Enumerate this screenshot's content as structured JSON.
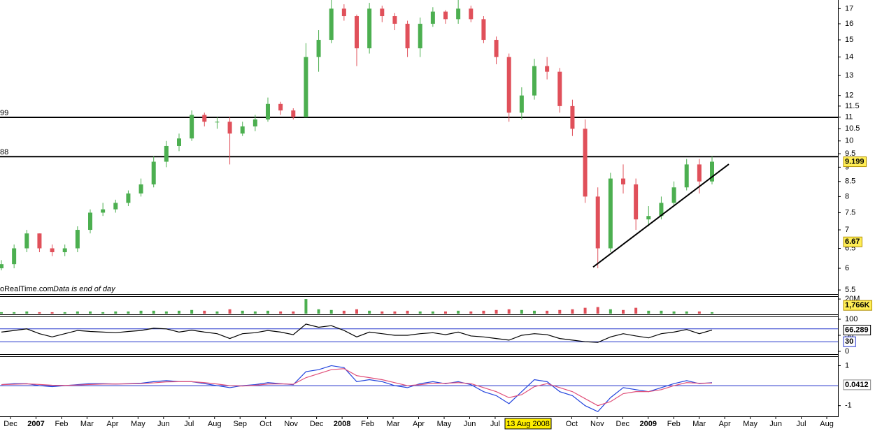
{
  "chart_data": [
    {
      "type": "candlestick",
      "open": [
        6.0,
        6.1,
        6.5,
        6.9,
        6.5,
        6.4,
        6.5,
        7.0,
        7.5,
        7.6,
        7.8,
        8.1,
        8.4,
        9.2,
        9.8,
        10.1,
        11.1,
        10.8,
        10.8,
        10.3,
        10.6,
        10.9,
        11.6,
        11.3,
        11.0,
        14.0,
        15.0,
        17.0,
        16.5,
        14.5,
        17.0,
        16.5,
        16.0,
        14.5,
        16.0,
        16.8,
        16.3,
        17.0,
        16.3,
        15.0,
        14.0,
        11.2,
        12.0,
        13.5,
        13.2,
        11.5,
        10.5,
        8.0,
        6.5,
        8.6,
        8.4,
        7.3,
        7.4,
        7.8,
        8.3,
        9.1,
        8.5
      ],
      "high": [
        6.2,
        6.6,
        7.0,
        6.9,
        6.6,
        6.6,
        7.1,
        7.6,
        7.8,
        7.9,
        8.2,
        8.6,
        9.4,
        10.0,
        10.3,
        11.3,
        11.2,
        11.0,
        11.0,
        10.8,
        11.1,
        11.9,
        11.7,
        11.4,
        14.8,
        15.6,
        17.6,
        17.3,
        16.6,
        17.4,
        17.2,
        16.7,
        16.2,
        16.4,
        17.1,
        16.9,
        17.6,
        17.2,
        16.5,
        15.2,
        14.2,
        12.4,
        13.9,
        14.0,
        13.4,
        11.8,
        10.9,
        8.3,
        8.8,
        9.1,
        8.6,
        7.7,
        8.0,
        8.5,
        9.3,
        9.3,
        9.4
      ],
      "low": [
        5.95,
        6.0,
        6.4,
        6.4,
        6.3,
        6.3,
        6.4,
        6.9,
        7.4,
        7.5,
        7.7,
        8.0,
        8.3,
        9.0,
        9.6,
        10.0,
        10.6,
        10.5,
        9.1,
        10.2,
        10.4,
        10.8,
        11.1,
        10.9,
        11.0,
        13.2,
        14.8,
        16.2,
        13.5,
        14.2,
        16.1,
        15.6,
        14.0,
        14.0,
        15.8,
        16.0,
        16.0,
        16.1,
        14.8,
        13.6,
        10.8,
        10.9,
        11.8,
        12.8,
        11.2,
        10.2,
        7.8,
        6.0,
        6.4,
        8.1,
        7.0,
        7.1,
        7.3,
        7.7,
        8.2,
        8.1,
        8.4
      ],
      "close": [
        6.1,
        6.5,
        6.9,
        6.5,
        6.4,
        6.5,
        7.0,
        7.5,
        7.6,
        7.8,
        8.1,
        8.4,
        9.2,
        9.8,
        10.1,
        11.1,
        10.8,
        10.8,
        10.3,
        10.6,
        10.9,
        11.6,
        11.3,
        11.0,
        14.0,
        15.0,
        17.0,
        16.5,
        14.5,
        17.0,
        16.5,
        16.0,
        14.5,
        16.0,
        16.8,
        16.3,
        17.0,
        16.3,
        15.0,
        14.0,
        11.2,
        12.0,
        13.5,
        13.2,
        11.5,
        10.5,
        8.0,
        6.5,
        8.6,
        8.4,
        7.3,
        7.4,
        7.8,
        8.3,
        9.1,
        8.5,
        9.2
      ],
      "up_color": "#4caf50",
      "down_color": "#e0505a",
      "log_scale": true,
      "ylim": [
        5.41,
        17.6
      ],
      "yticks": [
        5.5,
        6,
        6.5,
        7,
        7.5,
        8,
        8.5,
        9,
        9.5,
        10,
        10.5,
        11,
        11.5,
        12,
        13,
        14,
        15,
        16,
        17
      ],
      "levels": [
        {
          "value": 10.99,
          "label": "99"
        },
        {
          "value": 9.388,
          "label": "88"
        }
      ],
      "trendline": {
        "start": 6.03,
        "end": 9.11
      },
      "readouts": [
        9.199,
        6.67
      ],
      "source": "oRealTime.com",
      "note": "Data is end of day"
    },
    {
      "type": "bar",
      "values": [
        2,
        2,
        3,
        2,
        2,
        2,
        3,
        3,
        2,
        3,
        3,
        4,
        4,
        3,
        4,
        5,
        4,
        3,
        6,
        4,
        3,
        4,
        3,
        3,
        20,
        6,
        5,
        4,
        6,
        4,
        3,
        3,
        4,
        3,
        3,
        3,
        4,
        3,
        4,
        5,
        6,
        5,
        4,
        4,
        5,
        6,
        8,
        9,
        6,
        5,
        8,
        4,
        4,
        3,
        3,
        3,
        2
      ],
      "ylim": [
        0,
        22
      ],
      "yticks": [
        {
          "value": 20,
          "label": "20M"
        }
      ],
      "readout": {
        "value": 1.766,
        "label": "1,766K"
      }
    },
    {
      "type": "line",
      "color": "#000000",
      "values": [
        60,
        65,
        70,
        55,
        45,
        55,
        65,
        62,
        60,
        58,
        62,
        65,
        72,
        70,
        60,
        66,
        60,
        55,
        40,
        55,
        58,
        65,
        60,
        52,
        85,
        75,
        80,
        65,
        45,
        60,
        55,
        50,
        50,
        55,
        58,
        52,
        60,
        48,
        45,
        40,
        35,
        50,
        55,
        52,
        40,
        35,
        30,
        28,
        45,
        55,
        48,
        42,
        55,
        60,
        68,
        55,
        66.289
      ],
      "ylim": [
        0,
        100
      ],
      "yticks": [
        0,
        50,
        100
      ],
      "levels": [
        70,
        30
      ],
      "level_color": "#2233cc",
      "readout": 66.289
    },
    {
      "type": "line",
      "lines": [
        {
          "color": "#2244dd",
          "values": [
            0.05,
            0.1,
            0.1,
            0.0,
            -0.05,
            0.0,
            0.05,
            0.1,
            0.1,
            0.08,
            0.1,
            0.12,
            0.2,
            0.25,
            0.2,
            0.2,
            0.1,
            0.0,
            -0.1,
            0.0,
            0.05,
            0.15,
            0.1,
            0.05,
            0.7,
            0.8,
            1.0,
            0.9,
            0.2,
            0.3,
            0.2,
            0.0,
            -0.1,
            0.1,
            0.2,
            0.1,
            0.2,
            0.05,
            -0.3,
            -0.5,
            -0.9,
            -0.3,
            0.3,
            0.2,
            -0.3,
            -0.5,
            -1.0,
            -1.3,
            -0.6,
            -0.1,
            -0.2,
            -0.3,
            -0.1,
            0.1,
            0.25,
            0.1,
            0.15
          ]
        },
        {
          "color": "#e0507a",
          "values": [
            0.05,
            0.07,
            0.09,
            0.06,
            0.02,
            0.01,
            0.03,
            0.06,
            0.08,
            0.08,
            0.09,
            0.1,
            0.14,
            0.19,
            0.2,
            0.2,
            0.15,
            0.08,
            0.0,
            -0.02,
            0.02,
            0.08,
            0.09,
            0.07,
            0.4,
            0.6,
            0.8,
            0.85,
            0.5,
            0.4,
            0.3,
            0.15,
            0.0,
            0.05,
            0.12,
            0.12,
            0.15,
            0.1,
            -0.1,
            -0.3,
            -0.6,
            -0.45,
            -0.05,
            0.1,
            -0.1,
            -0.3,
            -0.65,
            -1.0,
            -0.8,
            -0.4,
            -0.3,
            -0.3,
            -0.2,
            0.0,
            0.15,
            0.12,
            0.13
          ]
        }
      ],
      "ylim": [
        -1.5,
        1.4
      ],
      "yticks": [
        1,
        -1
      ],
      "levels": [
        0
      ],
      "level_color": "#2233cc",
      "readout": 0.0412
    }
  ],
  "x_axis": {
    "categories": [
      "Dec",
      "2007",
      "Feb",
      "Mar",
      "Apr",
      "May",
      "Jun",
      "Jul",
      "Aug",
      "Sep",
      "Oct",
      "Nov",
      "Dec",
      "2008",
      "Feb",
      "Mar",
      "Apr",
      "May",
      "Jun",
      "Jul",
      null,
      null,
      "Oct",
      "Nov",
      "Dec",
      "2009",
      "Feb",
      "Mar",
      "Apr",
      "May",
      "Jun",
      "Jul",
      "Aug"
    ],
    "cursor_label": "13 Aug 2008"
  }
}
